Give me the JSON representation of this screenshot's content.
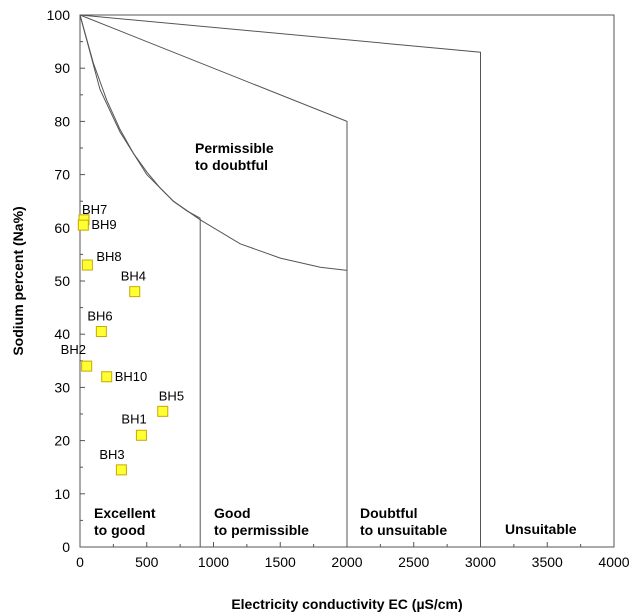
{
  "chart_data": {
    "type": "scatter",
    "title": "",
    "xlabel": "Electricity conductivity EC (µS/cm)",
    "ylabel": "Sodium percent (Na%)",
    "xlim": [
      0,
      4000
    ],
    "ylim": [
      0,
      100
    ],
    "xticks": [
      0,
      500,
      1000,
      1500,
      2000,
      2500,
      3000,
      3500,
      4000
    ],
    "yticks": [
      0,
      10,
      20,
      30,
      40,
      50,
      60,
      70,
      80,
      90,
      100
    ],
    "grid": false,
    "marker_color": "#ffff33",
    "marker_edge_color": "#c8a800",
    "line_color": "#555555",
    "points": [
      {
        "label": "BH1",
        "x": 460,
        "y": 21
      },
      {
        "label": "BH2",
        "x": 50,
        "y": 34
      },
      {
        "label": "BH3",
        "x": 310,
        "y": 14.5
      },
      {
        "label": "BH4",
        "x": 410,
        "y": 48
      },
      {
        "label": "BH5",
        "x": 620,
        "y": 25.5
      },
      {
        "label": "BH6",
        "x": 160,
        "y": 40.5
      },
      {
        "label": "BH7",
        "x": 30,
        "y": 61.5
      },
      {
        "label": "BH8",
        "x": 55,
        "y": 53
      },
      {
        "label": "BH9",
        "x": 25,
        "y": 60.5
      },
      {
        "label": "BH10",
        "x": 200,
        "y": 32
      }
    ],
    "region_labels": [
      {
        "lines": [
          "Excellent",
          "to good"
        ]
      },
      {
        "lines": [
          "Good",
          "to permissible"
        ]
      },
      {
        "lines": [
          "Doubtful",
          "to unsuitable"
        ]
      },
      {
        "lines": [
          "Unsuitable"
        ]
      },
      {
        "lines": [
          "Permissible",
          "to doubtful"
        ]
      }
    ],
    "boundaries": [
      {
        "name": "line-to-unsuitable",
        "x": [
          0,
          3000,
          3000
        ],
        "y": [
          100,
          93,
          0
        ]
      },
      {
        "name": "line-to-doubtful",
        "x": [
          0,
          2000,
          2000
        ],
        "y": [
          100,
          80,
          0
        ]
      },
      {
        "name": "curve-permissible",
        "x": [
          0,
          150,
          300,
          500,
          700,
          900,
          1200,
          1500,
          1800,
          2000
        ],
        "y": [
          100,
          86,
          78,
          70,
          65,
          61.5,
          57,
          54.3,
          52.6,
          52
        ]
      },
      {
        "name": "curve-excellent",
        "x": [
          0,
          100,
          200,
          300,
          400,
          500,
          600,
          700,
          800,
          900
        ],
        "y": [
          100,
          91,
          84,
          78.5,
          74,
          70.5,
          67.5,
          65,
          63.2,
          61.8
        ]
      },
      {
        "name": "line-excellent-good",
        "x": [
          900,
          900
        ],
        "y": [
          61.8,
          0
        ]
      }
    ]
  }
}
